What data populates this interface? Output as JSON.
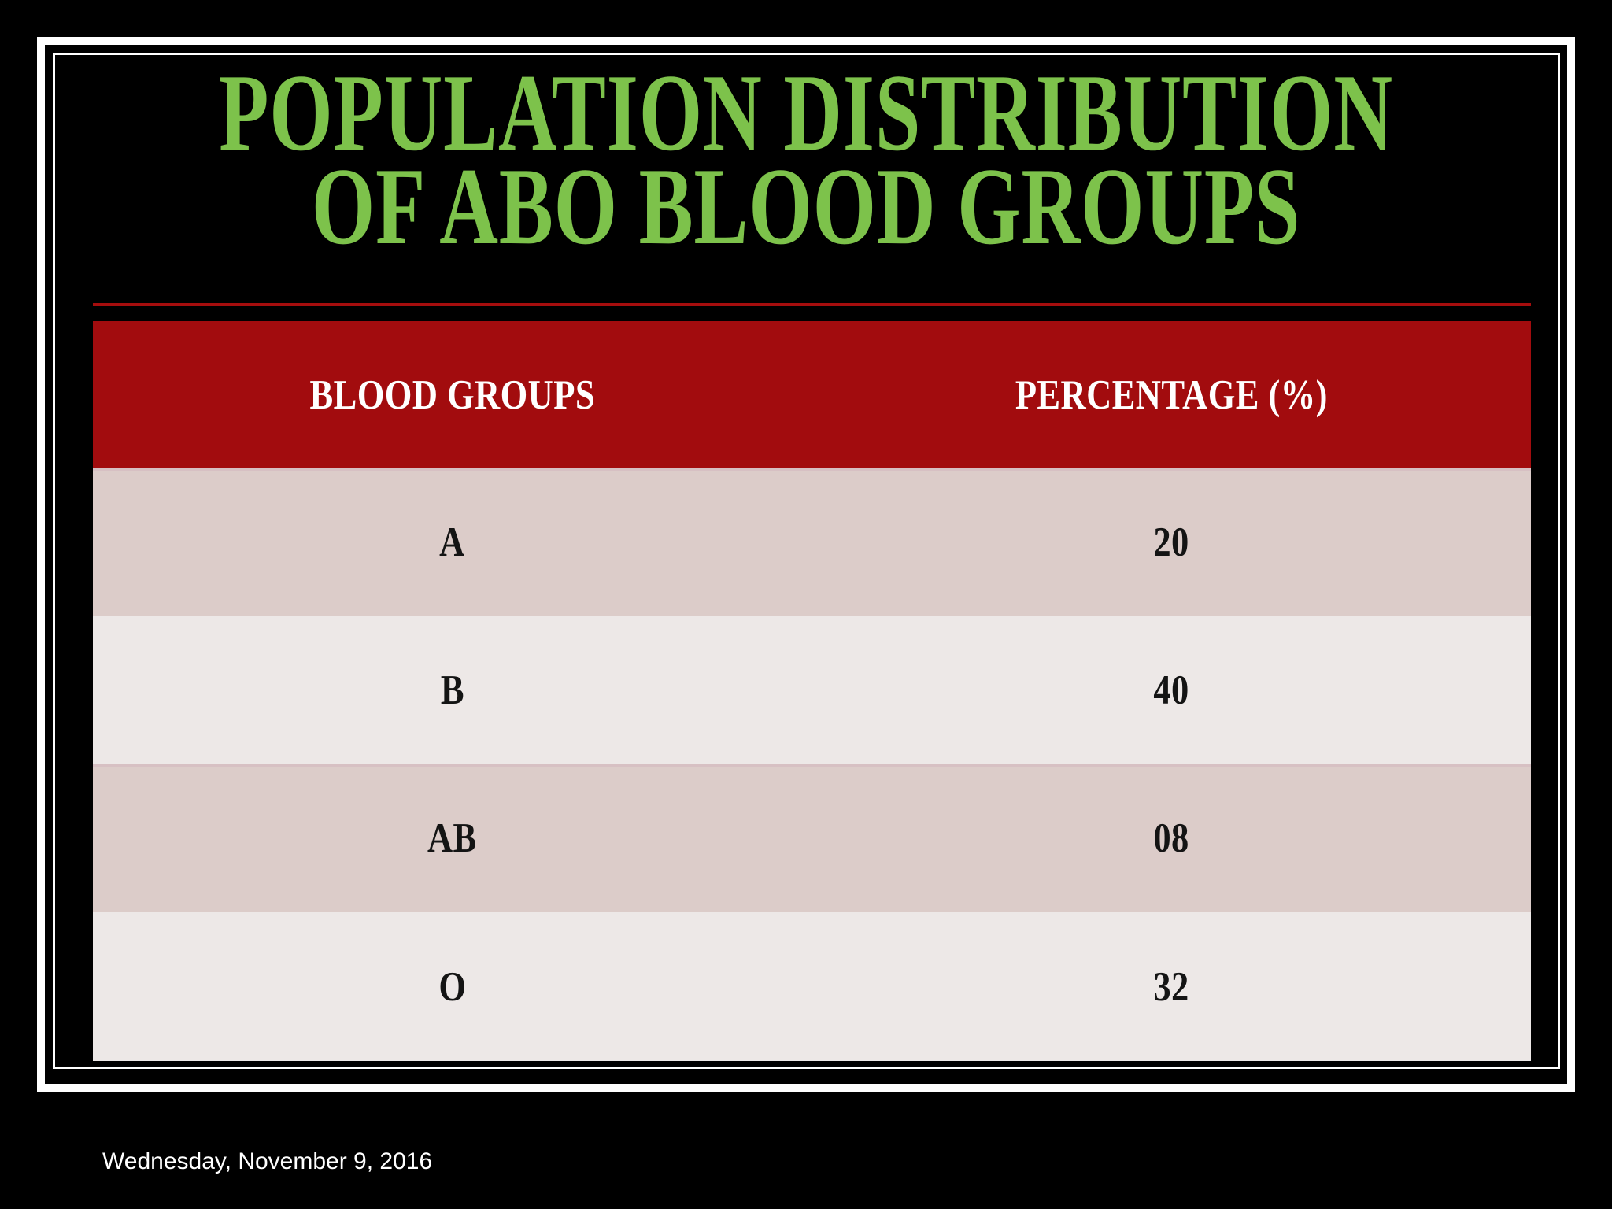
{
  "slide": {
    "title_line1": "POPULATION DISTRIBUTION",
    "title_line2": "OF ABO BLOOD GROUPS",
    "footer_date": "Wednesday, November 9, 2016"
  },
  "table": {
    "columns": [
      "BLOOD GROUPS",
      "PERCENTAGE (%)"
    ],
    "rows": [
      {
        "group": "A",
        "percentage": "20"
      },
      {
        "group": "B",
        "percentage": "40"
      },
      {
        "group": "AB",
        "percentage": "08"
      },
      {
        "group": "O",
        "percentage": "32"
      }
    ]
  },
  "chart_data": {
    "type": "table",
    "title": "POPULATION DISTRIBUTION OF ABO BLOOD GROUPS",
    "columns": [
      "BLOOD GROUPS",
      "PERCENTAGE (%)"
    ],
    "categories": [
      "A",
      "B",
      "AB",
      "O"
    ],
    "values": [
      20,
      40,
      8,
      32
    ],
    "value_labels": [
      "20",
      "40",
      "08",
      "32"
    ]
  },
  "colors": {
    "background": "#000000",
    "frame_white": "#FFFFFF",
    "title_green": "#7DC24B",
    "rule_red": "#A50D0D",
    "header_red": "#A20C0E",
    "row_dark": "#DCCCC9",
    "row_light": "#EDE8E7"
  }
}
